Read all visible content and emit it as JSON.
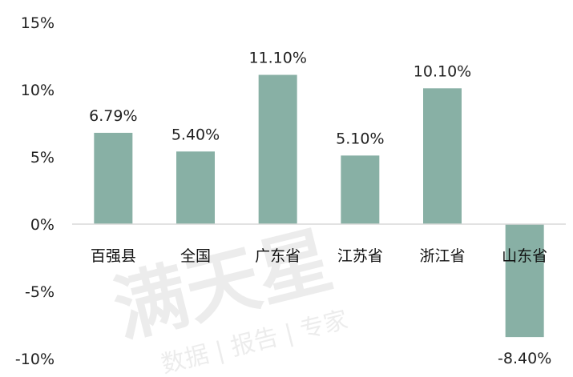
{
  "chart_data": {
    "type": "bar",
    "categories": [
      "百强县",
      "全国",
      "广东省",
      "江苏省",
      "浙江省",
      "山东省"
    ],
    "values": [
      6.79,
      5.4,
      11.1,
      5.1,
      10.1,
      -8.4
    ],
    "data_labels": [
      "6.79%",
      "5.40%",
      "11.10%",
      "5.10%",
      "10.10%",
      "-8.40%"
    ],
    "y_ticks": [
      15,
      10,
      5,
      0,
      -5,
      -10
    ],
    "y_tick_labels": [
      "15%",
      "10%",
      "5%",
      "0%",
      "-5%",
      "-10%"
    ],
    "ylim": [
      -10,
      15
    ],
    "grid": false,
    "bar_color": "#88b0a5",
    "axis_color": "#d9d9d9"
  },
  "watermark": {
    "main": "满天星",
    "sub": "数据 | 报告 | 专家"
  }
}
